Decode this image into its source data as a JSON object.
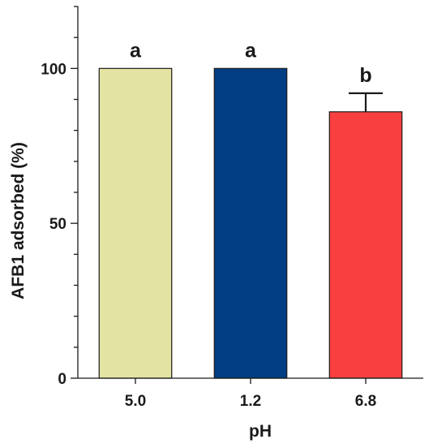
{
  "chart_data": {
    "type": "bar",
    "categories": [
      "5.0",
      "1.2",
      "6.8"
    ],
    "values": [
      100,
      100,
      86
    ],
    "error_upper": [
      0,
      0,
      6
    ],
    "significance_labels": [
      "a",
      "a",
      "b"
    ],
    "colors": [
      "#e4e4a2",
      "#003d82",
      "#f94040"
    ],
    "xlabel": "pH",
    "ylabel": "AFB1 adsorbed (%)",
    "ylim": [
      0,
      120
    ],
    "yticks_major": [
      0,
      50,
      100
    ],
    "yminor_step": 10,
    "grid": false
  }
}
